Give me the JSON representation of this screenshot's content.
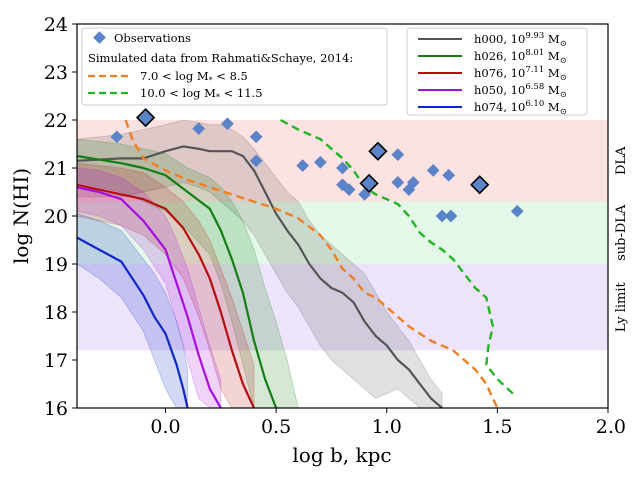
{
  "chart_data": {
    "type": "line",
    "xlabel": "log b, kpc",
    "ylabel": "log N(HI)",
    "xlim": [
      -0.4,
      2.0
    ],
    "ylim": [
      16,
      24
    ],
    "xticks": [
      0.0,
      0.5,
      1.0,
      1.5,
      2.0
    ],
    "xtick_labels": [
      "0.0",
      "0.5",
      "1.0",
      "1.5",
      "2.0"
    ],
    "yticks": [
      16,
      17,
      18,
      19,
      20,
      21,
      22,
      23,
      24
    ],
    "ytick_labels": [
      "16",
      "17",
      "18",
      "19",
      "20",
      "21",
      "22",
      "23",
      "24"
    ],
    "bands": [
      {
        "name": "DLA",
        "label": "DLA",
        "y0": 20.3,
        "y1": 22.0,
        "color": "#fde2e2"
      },
      {
        "name": "sub-DLA",
        "label": "sub-DLA",
        "y0": 19.0,
        "y1": 20.3,
        "color": "#e3f8e8"
      },
      {
        "name": "ly-limit",
        "label": "Ly limit",
        "y0": 17.2,
        "y1": 19.0,
        "color": "#ede4fb"
      }
    ],
    "observations": {
      "name": "Observations",
      "color": "#5b84c8",
      "points": [
        [
          -0.22,
          21.65
        ],
        [
          0.15,
          21.82
        ],
        [
          0.28,
          21.92
        ],
        [
          0.41,
          21.65
        ],
        [
          0.41,
          21.15
        ],
        [
          0.62,
          21.05
        ],
        [
          0.7,
          21.12
        ],
        [
          0.8,
          21.0
        ],
        [
          0.8,
          20.65
        ],
        [
          0.83,
          20.55
        ],
        [
          0.9,
          20.45
        ],
        [
          1.05,
          21.28
        ],
        [
          1.05,
          20.7
        ],
        [
          1.1,
          20.55
        ],
        [
          1.12,
          20.7
        ],
        [
          1.21,
          20.95
        ],
        [
          1.25,
          20.0
        ],
        [
          1.28,
          20.85
        ],
        [
          1.29,
          20.0
        ],
        [
          1.59,
          20.1
        ]
      ],
      "highlighted": [
        [
          -0.09,
          22.05
        ],
        [
          0.92,
          20.68
        ],
        [
          0.96,
          21.35
        ],
        [
          1.42,
          20.65
        ]
      ]
    },
    "legend_left": {
      "observations_label": "Observations",
      "subtitle": "Simulated data from Rahmati&Schaye, 2014:",
      "entries": [
        {
          "name": "rs-low",
          "range_label": "7.0 < log M",
          "suffix": " < 8.5",
          "color": "#f07f20"
        },
        {
          "name": "rs-high",
          "range_label": "10.0 < log M",
          "suffix": " < 11.5",
          "color": "#22b522"
        }
      ]
    },
    "rahmati_series": [
      {
        "name": "7.0 < log M* < 8.5",
        "color": "#f07f20",
        "x": [
          -0.18,
          -0.15,
          -0.1,
          0.0,
          0.1,
          0.2,
          0.3,
          0.4,
          0.5,
          0.6,
          0.7,
          0.75,
          0.8,
          0.85,
          0.9,
          0.95,
          1.0,
          1.1,
          1.2,
          1.3,
          1.4,
          1.45,
          1.48,
          1.5
        ],
        "y": [
          22.0,
          21.6,
          21.2,
          20.95,
          20.75,
          20.6,
          20.45,
          20.3,
          20.15,
          19.95,
          19.6,
          19.3,
          18.9,
          18.7,
          18.4,
          18.3,
          18.1,
          17.7,
          17.4,
          17.2,
          16.8,
          16.5,
          16.2,
          16.0
        ]
      },
      {
        "name": "10.0 < log M* < 11.5",
        "color": "#22b522",
        "x": [
          0.52,
          0.6,
          0.7,
          0.8,
          0.85,
          0.9,
          0.95,
          1.0,
          1.05,
          1.1,
          1.15,
          1.2,
          1.25,
          1.3,
          1.35,
          1.4,
          1.45,
          1.48,
          1.46,
          1.45,
          1.5,
          1.57
        ],
        "y": [
          22.0,
          21.8,
          21.6,
          21.2,
          20.95,
          20.6,
          20.45,
          20.35,
          20.25,
          20.0,
          19.65,
          19.45,
          19.3,
          19.1,
          18.8,
          18.5,
          18.3,
          17.7,
          17.3,
          16.9,
          16.6,
          16.3
        ]
      }
    ],
    "halo_series": [
      {
        "name": "h000",
        "label": "h000, 10",
        "exp": "9.93",
        "unit": " M",
        "color": "#555555",
        "x": [
          -0.4,
          -0.2,
          -0.1,
          0.0,
          0.08,
          0.15,
          0.2,
          0.25,
          0.3,
          0.35,
          0.4,
          0.45,
          0.5,
          0.55,
          0.6,
          0.65,
          0.7,
          0.75,
          0.8,
          0.85,
          0.9,
          0.95,
          1.0,
          1.05,
          1.1,
          1.15,
          1.2,
          1.25
        ],
        "y": [
          21.15,
          21.2,
          21.2,
          21.35,
          21.45,
          21.4,
          21.35,
          21.35,
          21.35,
          21.25,
          20.95,
          20.5,
          20.05,
          19.7,
          19.4,
          19.0,
          18.7,
          18.5,
          18.4,
          18.2,
          17.8,
          17.5,
          17.3,
          17.0,
          16.8,
          16.5,
          16.2,
          16.0
        ],
        "band_lo": [
          20.4,
          20.4,
          20.5,
          20.6,
          20.7,
          20.6,
          20.5,
          20.3,
          20.1,
          19.9,
          19.6,
          19.2,
          18.8,
          18.4,
          18.1,
          17.7,
          17.3,
          17.0,
          16.8,
          16.6,
          16.4,
          16.2,
          16.3,
          16.4,
          16.2,
          16.0,
          16.0,
          16.0
        ],
        "band_hi": [
          21.6,
          21.7,
          21.8,
          21.9,
          22.0,
          21.95,
          21.9,
          21.9,
          21.8,
          21.65,
          21.4,
          21.1,
          20.8,
          20.5,
          20.3,
          19.9,
          19.6,
          19.4,
          19.2,
          19.0,
          18.8,
          18.4,
          18.0,
          17.7,
          17.4,
          17.0,
          16.6,
          16.3
        ]
      },
      {
        "name": "h026",
        "label": "h026, 10",
        "exp": "8.01",
        "unit": " M",
        "color": "#137e13",
        "x": [
          -0.4,
          -0.2,
          -0.1,
          0.0,
          0.1,
          0.2,
          0.25,
          0.3,
          0.35,
          0.4,
          0.45,
          0.5
        ],
        "y": [
          21.25,
          21.1,
          21.0,
          20.85,
          20.5,
          20.15,
          19.7,
          19.1,
          18.4,
          17.4,
          16.6,
          16.0
        ],
        "band_lo": [
          20.7,
          20.5,
          20.3,
          20.1,
          19.7,
          19.2,
          18.6,
          17.8,
          16.9,
          16.0,
          16.0,
          16.0
        ],
        "band_hi": [
          21.6,
          21.5,
          21.4,
          21.3,
          21.0,
          20.8,
          20.6,
          20.3,
          19.9,
          19.3,
          18.5,
          17.8
        ],
        "band_extra_x": [
          0.55,
          0.6
        ],
        "band_extra_hi": [
          17.0,
          16.0
        ]
      },
      {
        "name": "h076",
        "label": "h076, 10",
        "exp": "7.11",
        "unit": " M",
        "color": "#b50e0e",
        "x": [
          -0.4,
          -0.2,
          -0.1,
          0.0,
          0.08,
          0.15,
          0.2,
          0.25,
          0.3,
          0.35,
          0.4
        ],
        "y": [
          20.65,
          20.45,
          20.35,
          20.15,
          19.75,
          19.2,
          18.7,
          18.0,
          17.2,
          16.5,
          16.0
        ],
        "band_lo": [
          20.0,
          19.8,
          19.6,
          19.2,
          18.7,
          17.9,
          17.2,
          16.4,
          16.0,
          16.0,
          16.0
        ],
        "band_hi": [
          21.1,
          21.0,
          20.9,
          20.6,
          20.3,
          19.9,
          19.5,
          18.9,
          18.3,
          17.6,
          16.9
        ]
      },
      {
        "name": "h050",
        "label": "h050, 10",
        "exp": "6.58",
        "unit": " M",
        "color": "#a80ce0",
        "x": [
          -0.4,
          -0.3,
          -0.2,
          -0.1,
          0.0,
          0.05,
          0.1,
          0.15,
          0.2,
          0.25
        ],
        "y": [
          20.6,
          20.5,
          20.35,
          19.9,
          19.3,
          18.6,
          17.9,
          17.1,
          16.4,
          16.0
        ],
        "band_lo": [
          20.1,
          20.0,
          19.8,
          19.3,
          18.6,
          17.8,
          17.0,
          16.2,
          16.0,
          16.0
        ],
        "band_hi": [
          21.0,
          20.95,
          20.8,
          20.5,
          20.0,
          19.5,
          18.9,
          18.1,
          17.3,
          16.6
        ]
      },
      {
        "name": "h074",
        "label": "h074, 10",
        "exp": "6.10",
        "unit": " M",
        "color": "#0d27c8",
        "x": [
          -0.4,
          -0.3,
          -0.2,
          -0.1,
          -0.05,
          0.0,
          0.05,
          0.08,
          0.1
        ],
        "y": [
          19.55,
          19.3,
          19.05,
          18.35,
          17.9,
          17.55,
          16.9,
          16.4,
          16.0
        ],
        "band_lo": [
          19.0,
          18.7,
          18.3,
          17.6,
          17.0,
          16.4,
          16.0,
          16.0,
          16.0
        ],
        "band_hi": [
          20.05,
          19.9,
          19.7,
          19.1,
          18.8,
          18.4,
          17.8,
          17.3,
          16.8
        ]
      }
    ]
  }
}
